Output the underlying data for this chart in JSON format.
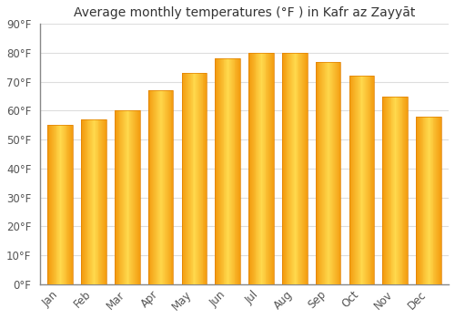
{
  "title": "Average monthly temperatures (°F ) in Kafr az Zayyāt",
  "months": [
    "Jan",
    "Feb",
    "Mar",
    "Apr",
    "May",
    "Jun",
    "Jul",
    "Aug",
    "Sep",
    "Oct",
    "Nov",
    "Dec"
  ],
  "values": [
    55,
    57,
    60,
    67,
    73,
    78,
    80,
    80,
    77,
    72,
    65,
    58
  ],
  "bar_color_center": "#FFD966",
  "bar_color_edge": "#F5A800",
  "background_color": "#FFFFFF",
  "ylim": [
    0,
    90
  ],
  "yticks": [
    0,
    10,
    20,
    30,
    40,
    50,
    60,
    70,
    80,
    90
  ],
  "grid_color": "#dddddd",
  "title_fontsize": 10,
  "tick_fontsize": 8.5,
  "font_family": "DejaVu Sans"
}
